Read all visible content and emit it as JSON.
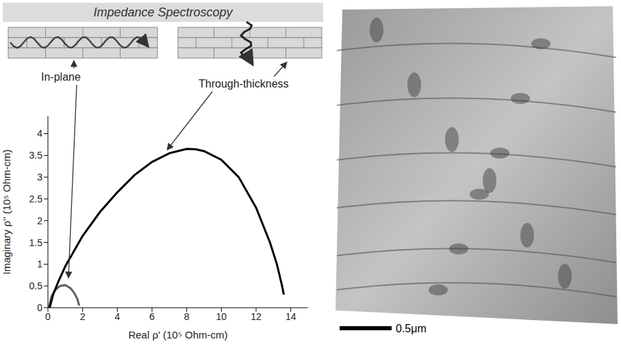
{
  "header": {
    "title": "Impedance Spectroscopy"
  },
  "chart_data": {
    "type": "line",
    "x_label": "Real ρ' (10⁵ Ohm-cm)",
    "y_label": "Imaginary ρ'' (10⁵ Ohm-cm)",
    "xlim": [
      0,
      15
    ],
    "ylim": [
      0,
      4.4
    ],
    "xticks": [
      0,
      2,
      4,
      6,
      8,
      10,
      12,
      14
    ],
    "yticks": [
      0,
      0.5,
      1,
      1.5,
      2,
      2.5,
      3,
      3.5,
      4
    ],
    "grid": false,
    "series": [
      {
        "name": "In-plane",
        "color": "#606060",
        "line_style": "solid",
        "x": [
          0.05,
          0.2,
          0.4,
          0.7,
          1.0,
          1.3,
          1.5,
          1.7,
          1.8
        ],
        "values": [
          0,
          0.25,
          0.4,
          0.5,
          0.52,
          0.45,
          0.35,
          0.2,
          0.05
        ]
      },
      {
        "name": "Through-thickness",
        "color": "#000000",
        "line_style": "solid",
        "x": [
          0.1,
          0.3,
          0.6,
          1,
          1.5,
          2,
          3,
          4,
          5,
          6,
          7,
          8,
          8.5,
          9,
          10,
          11,
          12,
          12.8,
          13.2,
          13.5,
          13.6
        ],
        "values": [
          0,
          0.3,
          0.6,
          0.95,
          1.3,
          1.65,
          2.2,
          2.65,
          3.05,
          3.35,
          3.55,
          3.65,
          3.64,
          3.6,
          3.4,
          3.0,
          2.3,
          1.5,
          1.0,
          0.5,
          0.3
        ]
      }
    ]
  },
  "micrograph": {
    "scale_bar": "0.5μm"
  }
}
